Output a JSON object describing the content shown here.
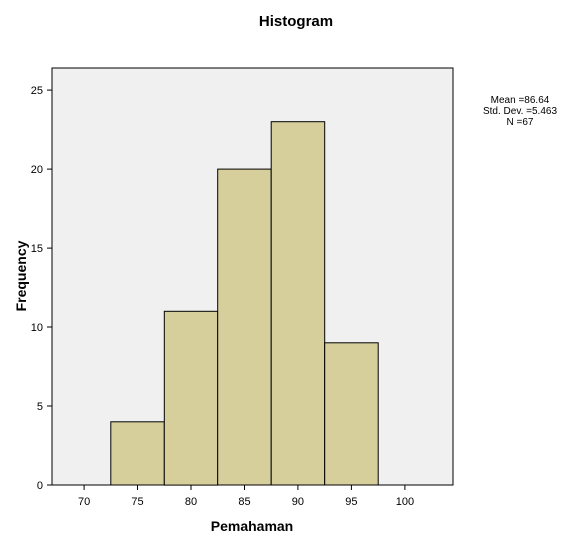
{
  "chart_data": {
    "type": "bar",
    "title": "Histogram",
    "xlabel": "Pemahaman",
    "ylabel": "Frequency",
    "xlim": [
      70,
      100
    ],
    "ylim": [
      0,
      25
    ],
    "x_ticks": [
      70,
      75,
      80,
      85,
      90,
      95,
      100
    ],
    "y_ticks": [
      0,
      5,
      10,
      15,
      20,
      25
    ],
    "bins": [
      {
        "x0": 72.5,
        "x1": 77.5,
        "count": 4
      },
      {
        "x0": 77.5,
        "x1": 82.5,
        "count": 11
      },
      {
        "x0": 82.5,
        "x1": 87.5,
        "count": 20
      },
      {
        "x0": 87.5,
        "x1": 92.5,
        "count": 23
      },
      {
        "x0": 92.5,
        "x1": 97.5,
        "count": 9
      }
    ],
    "stats": {
      "mean_label": "Mean =86.64",
      "std_label": "Std. Dev. =5.463",
      "n_label": "N =67"
    },
    "grid": false,
    "bar_color": "#d6cf9c",
    "bar_stroke": "#000000",
    "plot_bg": "#f0f0f0"
  }
}
